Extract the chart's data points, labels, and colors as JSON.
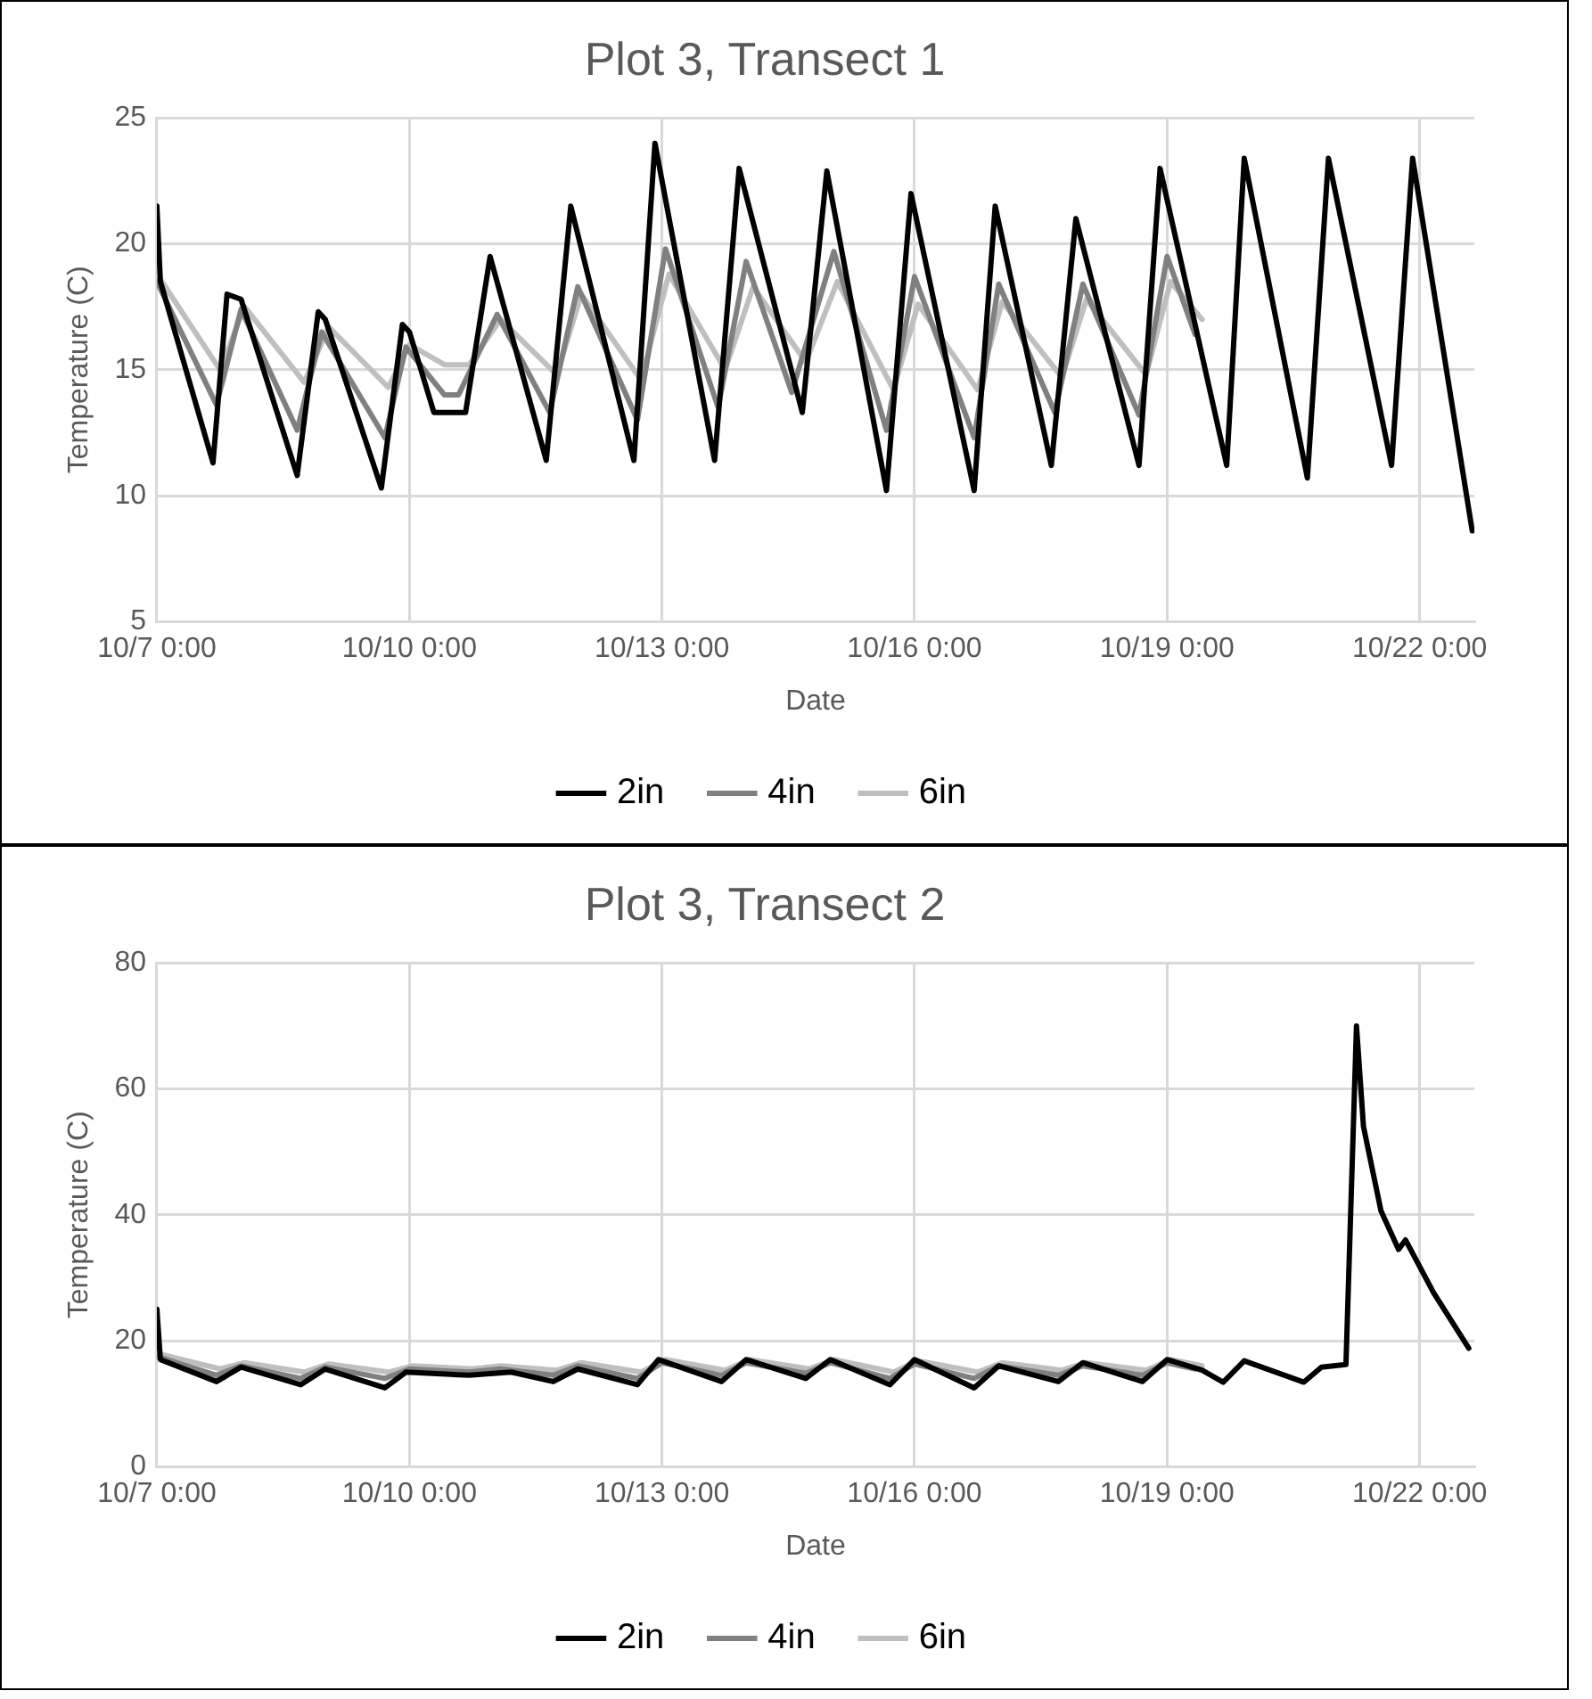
{
  "chart_data": [
    {
      "type": "line",
      "title": "Plot 3, Transect 1",
      "xlabel": "Date",
      "ylabel": "Temperature (C)",
      "xlim": [
        "--10-07T00:00",
        "--10-22T15:36"
      ],
      "xticks": [
        {
          "value": "--10-07T00:00",
          "label": "10/7 0:00"
        },
        {
          "value": "--10-10T00:00",
          "label": "10/10 0:00"
        },
        {
          "value": "--10-13T00:00",
          "label": "10/13 0:00"
        },
        {
          "value": "--10-16T00:00",
          "label": "10/16 0:00"
        },
        {
          "value": "--10-19T00:00",
          "label": "10/19 0:00"
        },
        {
          "value": "--10-22T00:00",
          "label": "10/22 0:00"
        }
      ],
      "ylim": [
        5,
        25
      ],
      "yticks": [
        5,
        10,
        15,
        20,
        25
      ],
      "grid": true,
      "legend": "bottom",
      "series": [
        {
          "name": "2in",
          "color": "#000000",
          "x": [
            "--10-07T00:00",
            "--10-07T01:00",
            "--10-07T16:00",
            "--10-07T20:00",
            "--10-08T00:00",
            "--10-08T16:00",
            "--10-08T22:00",
            "--10-09T00:00",
            "--10-09T16:00",
            "--10-09T22:00",
            "--10-10T00:00",
            "--10-10T07:00",
            "--10-10T16:00",
            "--10-10T23:00",
            "--10-11T15:00",
            "--10-11T22:00",
            "--10-12T16:00",
            "--10-12T22:00",
            "--10-13T15:00",
            "--10-13T22:00",
            "--10-14T16:00",
            "--10-14T23:00",
            "--10-15T16:00",
            "--10-15T23:00",
            "--10-16T17:00",
            "--10-16T23:00",
            "--10-17T15:00",
            "--10-17T22:00",
            "--10-18T16:00",
            "--10-18T22:00",
            "--10-19T17:00",
            "--10-19T22:00",
            "--10-20T16:00",
            "--10-20T22:00",
            "--10-21T16:00",
            "--10-21T22:00",
            "--10-22T15:00"
          ],
          "values": [
            21.5,
            18.5,
            11.3,
            18,
            17.8,
            10.8,
            17.3,
            17,
            10.3,
            16.8,
            16.5,
            13.3,
            13.3,
            19.5,
            11.4,
            21.5,
            11.4,
            24,
            11.4,
            23,
            13.3,
            22.9,
            10.2,
            22,
            10.2,
            21.5,
            11.2,
            21,
            11.2,
            23,
            11.2,
            23.4,
            10.7,
            23.4,
            11.2,
            23.4,
            8.6
          ]
        },
        {
          "name": "4in",
          "color": "#808080",
          "x": [
            "--10-07T00:00",
            "--10-07T17:00",
            "--10-08T00:00",
            "--10-08T16:00",
            "--10-08T23:00",
            "--10-09T17:00",
            "--10-09T23:00",
            "--10-10T10:00",
            "--10-10T14:00",
            "--10-11T01:00",
            "--10-11T16:00",
            "--10-12T00:00",
            "--10-12T17:00",
            "--10-13T01:00",
            "--10-13T16:00",
            "--10-14T00:00",
            "--10-14T13:00",
            "--10-15T01:00",
            "--10-15T16:00",
            "--10-16T00:00",
            "--10-16T17:00",
            "--10-17T00:00",
            "--10-17T16:00",
            "--10-18T00:00",
            "--10-18T16:00",
            "--10-19T00:00",
            "--10-19T08:00"
          ],
          "values": [
            18.5,
            13.6,
            17.4,
            12.6,
            16.5,
            12.3,
            15.9,
            14,
            14,
            17.2,
            13.3,
            18.3,
            13,
            19.8,
            13.5,
            19.3,
            14.1,
            19.7,
            12.6,
            18.7,
            12.3,
            18.4,
            13.3,
            18.4,
            13.2,
            19.5,
            16.4
          ]
        },
        {
          "name": "6in",
          "color": "#bfbfbf",
          "x": [
            "--10-07T00:00",
            "--10-07T18:00",
            "--10-08T01:00",
            "--10-08T18:00",
            "--10-09T01:00",
            "--10-09T18:00",
            "--10-10T00:00",
            "--10-10T10:00",
            "--10-10T17:00",
            "--10-11T02:00",
            "--10-11T18:00",
            "--10-12T01:00",
            "--10-12T18:00",
            "--10-13T02:00",
            "--10-13T18:00",
            "--10-14T02:00",
            "--10-14T17:00",
            "--10-15T02:00",
            "--10-15T18:00",
            "--10-16T01:00",
            "--10-16T18:00",
            "--10-17T01:00",
            "--10-17T18:00",
            "--10-18T01:00",
            "--10-18T18:00",
            "--10-19T01:00",
            "--10-19T10:00"
          ],
          "values": [
            18.8,
            15,
            17.5,
            14.5,
            16.7,
            14.3,
            16,
            15.2,
            15.2,
            17,
            14.8,
            18,
            14.6,
            18.8,
            15,
            18.3,
            15.3,
            18.5,
            14.2,
            17.6,
            14.2,
            17.7,
            14.7,
            17.8,
            14.8,
            18.5,
            17
          ]
        }
      ]
    },
    {
      "type": "line",
      "title": "Plot 3, Transect 2",
      "xlabel": "Date",
      "ylabel": "Temperature (C)",
      "xlim": [
        "--10-07T00:00",
        "--10-22T15:36"
      ],
      "xticks": [
        {
          "value": "--10-07T00:00",
          "label": "10/7 0:00"
        },
        {
          "value": "--10-10T00:00",
          "label": "10/10 0:00"
        },
        {
          "value": "--10-13T00:00",
          "label": "10/13 0:00"
        },
        {
          "value": "--10-16T00:00",
          "label": "10/16 0:00"
        },
        {
          "value": "--10-19T00:00",
          "label": "10/19 0:00"
        },
        {
          "value": "--10-22T00:00",
          "label": "10/22 0:00"
        }
      ],
      "ylim": [
        0,
        80
      ],
      "yticks": [
        0,
        20,
        40,
        60,
        80
      ],
      "grid": true,
      "legend": "bottom",
      "series": [
        {
          "name": "2in",
          "color": "#000000",
          "x": [
            "--10-07T00:00",
            "--10-07T01:00",
            "--10-07T17:00",
            "--10-08T00:00",
            "--10-08T17:00",
            "--10-09T00:00",
            "--10-09T17:00",
            "--10-09T23:00",
            "--10-10T17:00",
            "--10-11T05:00",
            "--10-11T17:00",
            "--10-12T00:00",
            "--10-12T17:00",
            "--10-12T23:00",
            "--10-13T17:00",
            "--10-14T00:00",
            "--10-14T17:00",
            "--10-15T00:00",
            "--10-15T17:00",
            "--10-16T00:00",
            "--10-16T17:00",
            "--10-17T00:00",
            "--10-17T17:00",
            "--10-18T00:00",
            "--10-18T17:00",
            "--10-19T00:00",
            "--10-19T10:00",
            "--10-19T16:00",
            "--10-19T22:00",
            "--10-20T15:00",
            "--10-20T20:00",
            "--10-21T03:00",
            "--10-21T06:00",
            "--10-21T08:00",
            "--10-21T13:00",
            "--10-21T18:00",
            "--10-21T20:00",
            "--10-22T04:00",
            "--10-22T14:00"
          ],
          "values": [
            25,
            17,
            13.5,
            15.8,
            13,
            15.5,
            12.5,
            15,
            14.5,
            15,
            13.5,
            15.5,
            13,
            17,
            13.5,
            17,
            14,
            17,
            13,
            17,
            12.5,
            16,
            13.5,
            16.5,
            13.5,
            17,
            15.3,
            13.4,
            16.8,
            13.4,
            15.8,
            16.2,
            70,
            54,
            40.6,
            34.5,
            36,
            27.6,
            18.8
          ]
        },
        {
          "name": "4in",
          "color": "#808080",
          "x": [
            "--10-07T00:00",
            "--10-07T17:00",
            "--10-08T00:00",
            "--10-08T17:00",
            "--10-09T00:00",
            "--10-09T17:00",
            "--10-10T00:00",
            "--10-10T17:00",
            "--10-11T02:00",
            "--10-11T17:00",
            "--10-12T00:00",
            "--10-12T17:00",
            "--10-13T00:00",
            "--10-13T17:00",
            "--10-14T00:00",
            "--10-14T17:00",
            "--10-15T00:00",
            "--10-15T17:00",
            "--10-16T00:00",
            "--10-16T17:00",
            "--10-17T00:00",
            "--10-17T17:00",
            "--10-18T00:00",
            "--10-18T17:00",
            "--10-19T00:00",
            "--10-19T08:00"
          ],
          "values": [
            17.5,
            14.5,
            16,
            14,
            15.8,
            14,
            15.5,
            15,
            15.5,
            14.5,
            16,
            14,
            16.5,
            14.5,
            16.5,
            14.8,
            16.5,
            14,
            16.3,
            14,
            16,
            14.5,
            16,
            14.5,
            16.5,
            15.5
          ]
        },
        {
          "name": "6in",
          "color": "#bfbfbf",
          "x": [
            "--10-07T00:00",
            "--10-07T18:00",
            "--10-08T01:00",
            "--10-08T18:00",
            "--10-09T01:00",
            "--10-09T18:00",
            "--10-10T01:00",
            "--10-10T18:00",
            "--10-11T02:00",
            "--10-11T18:00",
            "--10-12T01:00",
            "--10-12T18:00",
            "--10-13T01:00",
            "--10-13T18:00",
            "--10-14T01:00",
            "--10-14T18:00",
            "--10-15T01:00",
            "--10-15T18:00",
            "--10-16T01:00",
            "--10-16T18:00",
            "--10-17T01:00",
            "--10-17T18:00",
            "--10-18T01:00",
            "--10-18T18:00",
            "--10-19T01:00",
            "--10-19T10:00"
          ],
          "values": [
            18,
            15.5,
            16.5,
            15,
            16.3,
            15,
            16,
            15.5,
            16,
            15.3,
            16.5,
            15,
            17,
            15.3,
            17,
            15.5,
            17,
            15,
            16.8,
            15,
            16.5,
            15.3,
            16.5,
            15.3,
            17,
            16
          ]
        }
      ]
    }
  ]
}
